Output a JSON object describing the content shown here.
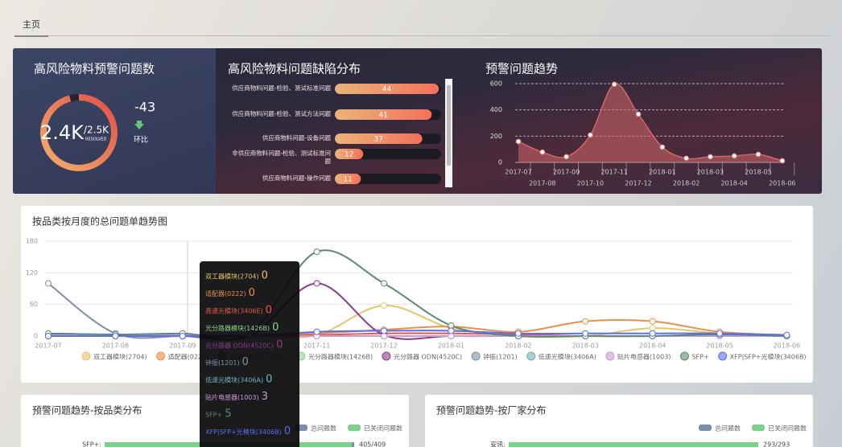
{
  "tab": "主页",
  "chart_data": [
    {
      "type": "gauge",
      "title": "高风险物料预警问题数",
      "value": {
        "value": 2400,
        "label": "2.4K"
      },
      "max": {
        "value": 2500,
        "label": "/2.5K"
      },
      "value_caption": "RESOLVED",
      "change": -43,
      "change_label": "环比"
    },
    {
      "type": "hbar",
      "title": "高风险物料问题缺陷分布",
      "categories": [
        "供应商物料问题-检验、测试标准问题",
        "供应商物料问题-检验、测试方法问题",
        "供应商物料问题-设备问题",
        "非供应商物料问题-检验、测试标准问题",
        "供应商物料问题-操作问题"
      ],
      "values": [
        44,
        41,
        37,
        12,
        11
      ],
      "xlim": [
        0,
        45
      ],
      "color": "#f27e5c"
    },
    {
      "type": "area",
      "title": "预警问题趋势",
      "x": [
        "2017-07",
        "2017-08",
        "2017-09",
        "2017-10",
        "2017-11",
        "2017-12",
        "2018-01",
        "2018-02",
        "2018-03",
        "2018-04",
        "2018-05",
        "2018-06"
      ],
      "values": [
        159,
        78,
        43,
        208,
        595,
        367,
        116,
        31,
        43,
        49,
        61,
        12
      ],
      "ylim": [
        0,
        600
      ],
      "yticks": [
        0,
        200,
        400,
        600
      ],
      "color": "#d2666a",
      "grid": true
    },
    {
      "type": "line",
      "title": "按品类按月度的总问题单趋势图",
      "x": [
        "2017-07",
        "2017-08",
        "2017-09",
        "2017-10",
        "2017-11",
        "2017-12",
        "2018-01",
        "2018-02",
        "2018-03",
        "2018-04",
        "2018-05",
        "2018-06"
      ],
      "ylim": [
        0,
        180
      ],
      "yticks": [
        0,
        60,
        120,
        180
      ],
      "grid": true,
      "series": [
        {
          "name": "双工器模块(2704)",
          "color": "#e6c56a",
          "values": [
            0,
            0,
            0,
            0,
            2,
            58,
            15,
            0,
            0,
            15,
            5,
            0
          ]
        },
        {
          "name": "适配器(0222)",
          "color": "#e8904a",
          "values": [
            0,
            0,
            0,
            0,
            5,
            12,
            18,
            8,
            28,
            28,
            8,
            2
          ]
        },
        {
          "name": "高速光模块(3406E)",
          "color": "#e8584a",
          "values": [
            0,
            0,
            0,
            0,
            2,
            5,
            5,
            3,
            0,
            0,
            3,
            0
          ]
        },
        {
          "name": "光分路器模块(1426B)",
          "color": "#8fd18f",
          "values": [
            0,
            0,
            0,
            0,
            0,
            0,
            0,
            0,
            0,
            0,
            0,
            0
          ]
        },
        {
          "name": "光分路器 ODN(4520C)",
          "color": "#8e3a8e",
          "values": [
            0,
            0,
            0,
            0,
            100,
            2,
            0,
            0,
            0,
            0,
            0,
            0
          ]
        },
        {
          "name": "钟振(1201)",
          "color": "#7f8fa6",
          "values": [
            100,
            5,
            0,
            0,
            0,
            0,
            0,
            0,
            0,
            0,
            0,
            0
          ]
        },
        {
          "name": "低速光模块(3406A)",
          "color": "#6fb3b3",
          "values": [
            0,
            0,
            0,
            0,
            0,
            0,
            0,
            0,
            0,
            0,
            0,
            0
          ]
        },
        {
          "name": "贴片电感器(1003)",
          "color": "#c79ad6",
          "values": [
            2,
            0,
            3,
            0,
            0,
            0,
            0,
            0,
            0,
            0,
            0,
            0
          ]
        },
        {
          "name": "SFP+",
          "color": "#5a8a72",
          "values": [
            5,
            3,
            5,
            5,
            160,
            100,
            20,
            0,
            0,
            0,
            3,
            0
          ]
        },
        {
          "name": "XFP|SFP+光模块(3406B)",
          "color": "#5a6ef0",
          "values": [
            0,
            0,
            0,
            0,
            8,
            10,
            10,
            5,
            5,
            5,
            5,
            2
          ]
        }
      ]
    },
    {
      "type": "progress",
      "title": "预警问题趋势-按品类分布",
      "categories": [
        "SFP+:"
      ],
      "xlim": [
        0,
        409
      ],
      "series": [
        {
          "name": "总问题数",
          "color": "#7d8ea8",
          "values": [
            409
          ]
        },
        {
          "name": "已关闭问题数",
          "color": "#7fcf8f",
          "values": [
            405
          ]
        }
      ],
      "value_labels": [
        "405/409"
      ]
    },
    {
      "type": "progress",
      "title": "预警问题趋势-按厂家分布",
      "categories": [
        "安讯:"
      ],
      "xlim": [
        0,
        293
      ],
      "series": [
        {
          "name": "总问题数",
          "color": "#7d8ea8",
          "values": [
            293
          ]
        },
        {
          "name": "已关闭问题数",
          "color": "#7fcf8f",
          "values": [
            293
          ]
        }
      ],
      "value_labels": [
        "293/293"
      ]
    }
  ]
}
